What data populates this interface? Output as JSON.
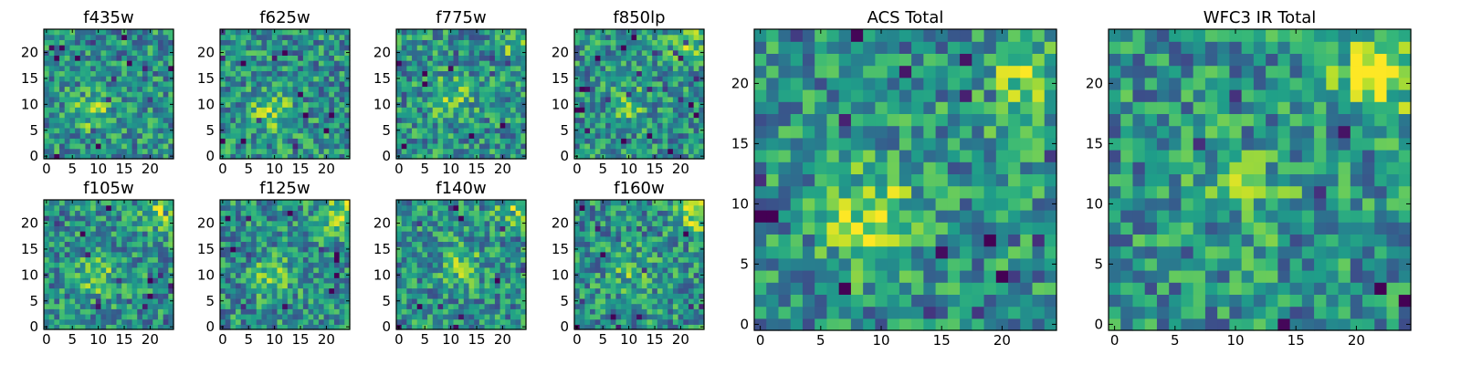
{
  "chart_data": [
    {
      "type": "heatmap",
      "title": "f435w",
      "colormap": "viridis",
      "grid": false,
      "xticks": [
        "0",
        "5",
        "10",
        "15",
        "20"
      ],
      "yticks": [
        "0",
        "5",
        "10",
        "15",
        "20"
      ],
      "xlim": [
        -0.5,
        24.5
      ],
      "ylim": [
        -0.5,
        24.5
      ],
      "size": [
        25,
        25
      ],
      "hotspots": [
        {
          "x": 9,
          "y": 9,
          "amp": 0.28
        }
      ]
    },
    {
      "type": "heatmap",
      "title": "f625w",
      "colormap": "viridis",
      "grid": false,
      "xticks": [
        "0",
        "5",
        "10",
        "15",
        "20"
      ],
      "yticks": [
        "0",
        "5",
        "10",
        "15",
        "20"
      ],
      "xlim": [
        -0.5,
        24.5
      ],
      "ylim": [
        -0.5,
        24.5
      ],
      "size": [
        25,
        25
      ],
      "hotspots": [
        {
          "x": 9,
          "y": 9,
          "amp": 0.32
        }
      ]
    },
    {
      "type": "heatmap",
      "title": "f775w",
      "colormap": "viridis",
      "grid": false,
      "xticks": [
        "0",
        "5",
        "10",
        "15",
        "20"
      ],
      "yticks": [
        "0",
        "5",
        "10",
        "15",
        "20"
      ],
      "xlim": [
        -0.5,
        24.5
      ],
      "ylim": [
        -0.5,
        24.5
      ],
      "size": [
        25,
        25
      ],
      "hotspots": [
        {
          "x": 10,
          "y": 11,
          "amp": 0.3
        },
        {
          "x": 22,
          "y": 22,
          "amp": 0.2
        }
      ]
    },
    {
      "type": "heatmap",
      "title": "f850lp",
      "colormap": "viridis",
      "grid": false,
      "xticks": [
        "0",
        "5",
        "10",
        "15",
        "20"
      ],
      "yticks": [
        "0",
        "5",
        "10",
        "15",
        "20"
      ],
      "xlim": [
        -0.5,
        24.5
      ],
      "ylim": [
        -0.5,
        24.5
      ],
      "size": [
        25,
        25
      ],
      "hotspots": [
        {
          "x": 22,
          "y": 22,
          "amp": 0.3
        },
        {
          "x": 10,
          "y": 10,
          "amp": 0.2
        }
      ]
    },
    {
      "type": "heatmap",
      "title": "ACS Total",
      "colormap": "viridis",
      "grid": false,
      "xticks": [
        "0",
        "5",
        "10",
        "15",
        "20"
      ],
      "yticks": [
        "0",
        "5",
        "10",
        "15",
        "20"
      ],
      "xlim": [
        -0.5,
        24.5
      ],
      "ylim": [
        -0.5,
        24.5
      ],
      "size": [
        25,
        25
      ],
      "hotspots": [
        {
          "x": 9,
          "y": 9,
          "amp": 0.38
        },
        {
          "x": 22,
          "y": 20,
          "amp": 0.32
        }
      ]
    },
    {
      "type": "heatmap",
      "title": "f105w",
      "colormap": "viridis",
      "grid": false,
      "xticks": [
        "0",
        "5",
        "10",
        "15",
        "20"
      ],
      "yticks": [
        "0",
        "5",
        "10",
        "15",
        "20"
      ],
      "xlim": [
        -0.5,
        24.5
      ],
      "ylim": [
        -0.5,
        24.5
      ],
      "size": [
        25,
        25
      ],
      "hotspots": [
        {
          "x": 23,
          "y": 22,
          "amp": 0.35
        },
        {
          "x": 10,
          "y": 10,
          "amp": 0.25
        }
      ]
    },
    {
      "type": "heatmap",
      "title": "f125w",
      "colormap": "viridis",
      "grid": false,
      "xticks": [
        "0",
        "5",
        "10",
        "15",
        "20"
      ],
      "yticks": [
        "0",
        "5",
        "10",
        "15",
        "20"
      ],
      "xlim": [
        -0.5,
        24.5
      ],
      "ylim": [
        -0.5,
        24.5
      ],
      "size": [
        25,
        25
      ],
      "hotspots": [
        {
          "x": 23,
          "y": 22,
          "amp": 0.35
        },
        {
          "x": 10,
          "y": 10,
          "amp": 0.25
        }
      ]
    },
    {
      "type": "heatmap",
      "title": "f140w",
      "colormap": "viridis",
      "grid": false,
      "xticks": [
        "0",
        "5",
        "10",
        "15",
        "20"
      ],
      "yticks": [
        "0",
        "5",
        "10",
        "15",
        "20"
      ],
      "xlim": [
        -0.5,
        24.5
      ],
      "ylim": [
        -0.5,
        24.5
      ],
      "size": [
        25,
        25
      ],
      "hotspots": [
        {
          "x": 23,
          "y": 22,
          "amp": 0.35
        },
        {
          "x": 12,
          "y": 12,
          "amp": 0.25
        }
      ]
    },
    {
      "type": "heatmap",
      "title": "f160w",
      "colormap": "viridis",
      "grid": false,
      "xticks": [
        "0",
        "5",
        "10",
        "15",
        "20"
      ],
      "yticks": [
        "0",
        "5",
        "10",
        "15",
        "20"
      ],
      "xlim": [
        -0.5,
        24.5
      ],
      "ylim": [
        -0.5,
        24.5
      ],
      "size": [
        25,
        25
      ],
      "hotspots": [
        {
          "x": 23,
          "y": 22,
          "amp": 0.4
        },
        {
          "x": 11,
          "y": 11,
          "amp": 0.2
        }
      ]
    },
    {
      "type": "heatmap",
      "title": "WFC3 IR Total",
      "colormap": "viridis",
      "grid": false,
      "xticks": [
        "0",
        "5",
        "10",
        "15",
        "20"
      ],
      "yticks": [
        "0",
        "5",
        "10",
        "15",
        "20"
      ],
      "xlim": [
        -0.5,
        24.5
      ],
      "ylim": [
        -0.5,
        24.5
      ],
      "size": [
        25,
        25
      ],
      "hotspots": [
        {
          "x": 22,
          "y": 21,
          "amp": 0.4
        },
        {
          "x": 11,
          "y": 11,
          "amp": 0.2
        }
      ]
    }
  ]
}
